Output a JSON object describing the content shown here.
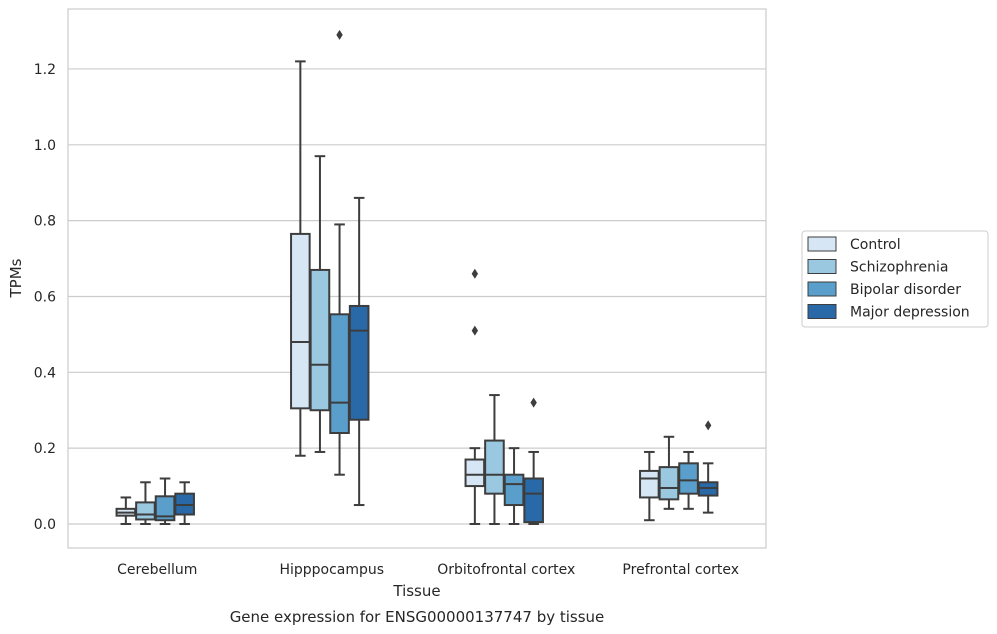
{
  "chart_data": {
    "type": "box",
    "caption": "Gene expression for ENSG00000137747 by tissue",
    "xlabel": "Tissue",
    "ylabel": "TPMs",
    "ylim": [
      -0.06,
      1.36
    ],
    "yticks": [
      0.0,
      0.2,
      0.4,
      0.6,
      0.8,
      1.0,
      1.2
    ],
    "ytick_labels": [
      "0.0",
      "0.2",
      "0.4",
      "0.6",
      "0.8",
      "1.0",
      "1.2"
    ],
    "grid": "horizontal",
    "legend_position": "right",
    "categories": [
      "Cerebellum",
      "Hipppocampus",
      "Orbitofrontal cortex",
      "Prefrontal cortex"
    ],
    "series": [
      {
        "name": "Control",
        "color": "#d6e6f4",
        "boxes": [
          {
            "whislo": 0.0,
            "q1": 0.022,
            "med": 0.03,
            "q3": 0.04,
            "whishi": 0.07,
            "fliers": []
          },
          {
            "whislo": 0.18,
            "q1": 0.305,
            "med": 0.48,
            "q3": 0.765,
            "whishi": 1.22,
            "fliers": []
          },
          {
            "whislo": 0.0,
            "q1": 0.1,
            "med": 0.13,
            "q3": 0.17,
            "whishi": 0.2,
            "fliers": [
              0.51,
              0.66
            ]
          },
          {
            "whislo": 0.01,
            "q1": 0.07,
            "med": 0.12,
            "q3": 0.14,
            "whishi": 0.19,
            "fliers": []
          }
        ]
      },
      {
        "name": "Schizophrenia",
        "color": "#9ac8e0",
        "boxes": [
          {
            "whislo": 0.0,
            "q1": 0.012,
            "med": 0.025,
            "q3": 0.057,
            "whishi": 0.11,
            "fliers": []
          },
          {
            "whislo": 0.19,
            "q1": 0.3,
            "med": 0.42,
            "q3": 0.67,
            "whishi": 0.97,
            "fliers": []
          },
          {
            "whislo": 0.0,
            "q1": 0.08,
            "med": 0.13,
            "q3": 0.22,
            "whishi": 0.34,
            "fliers": []
          },
          {
            "whislo": 0.04,
            "q1": 0.065,
            "med": 0.095,
            "q3": 0.15,
            "whishi": 0.23,
            "fliers": []
          }
        ]
      },
      {
        "name": "Bipolar disorder",
        "color": "#5a9fcb",
        "boxes": [
          {
            "whislo": 0.0,
            "q1": 0.01,
            "med": 0.02,
            "q3": 0.073,
            "whishi": 0.12,
            "fliers": []
          },
          {
            "whislo": 0.13,
            "q1": 0.24,
            "med": 0.32,
            "q3": 0.553,
            "whishi": 0.79,
            "fliers": [
              1.29
            ]
          },
          {
            "whislo": 0.0,
            "q1": 0.05,
            "med": 0.105,
            "q3": 0.13,
            "whishi": 0.2,
            "fliers": []
          },
          {
            "whislo": 0.04,
            "q1": 0.08,
            "med": 0.115,
            "q3": 0.16,
            "whishi": 0.19,
            "fliers": []
          }
        ]
      },
      {
        "name": "Major depression",
        "color": "#2a69a8",
        "boxes": [
          {
            "whislo": 0.0,
            "q1": 0.025,
            "med": 0.05,
            "q3": 0.08,
            "whishi": 0.11,
            "fliers": []
          },
          {
            "whislo": 0.05,
            "q1": 0.275,
            "med": 0.51,
            "q3": 0.575,
            "whishi": 0.86,
            "fliers": []
          },
          {
            "whislo": 0.0,
            "q1": 0.005,
            "med": 0.08,
            "q3": 0.12,
            "whishi": 0.19,
            "fliers": [
              0.32
            ]
          },
          {
            "whislo": 0.03,
            "q1": 0.075,
            "med": 0.095,
            "q3": 0.11,
            "whishi": 0.16,
            "fliers": [
              0.26
            ]
          }
        ]
      }
    ]
  }
}
